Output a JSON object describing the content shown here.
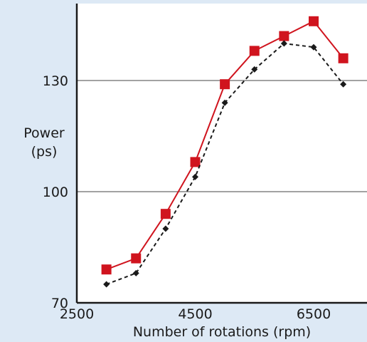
{
  "chart_data": {
    "type": "line",
    "title": "",
    "xlabel": "Number of rotations (rpm)",
    "ylabel_line1": "Power",
    "ylabel_line2": "(ps)",
    "xlim": [
      2500,
      7500
    ],
    "ylim": [
      70,
      150
    ],
    "xticks": [
      2500,
      4500,
      6500
    ],
    "yticks": [
      70,
      100,
      130
    ],
    "grid": {
      "horizontal_at": [
        100,
        130
      ]
    },
    "series": [
      {
        "color": "#d0141e",
        "style": "solid",
        "marker": "square",
        "x": [
          3000,
          3500,
          4000,
          4500,
          5000,
          5500,
          6000,
          6500,
          7000
        ],
        "y": [
          79,
          82,
          94,
          108,
          129,
          138,
          142,
          146,
          136
        ]
      },
      {
        "color": "#1a1a1a",
        "style": "dashed",
        "marker": "diamond",
        "x": [
          3000,
          3500,
          4000,
          4500,
          5000,
          5500,
          6000,
          6500,
          7000
        ],
        "y": [
          75,
          78,
          90,
          104,
          124,
          133,
          140,
          139,
          129
        ]
      }
    ]
  }
}
